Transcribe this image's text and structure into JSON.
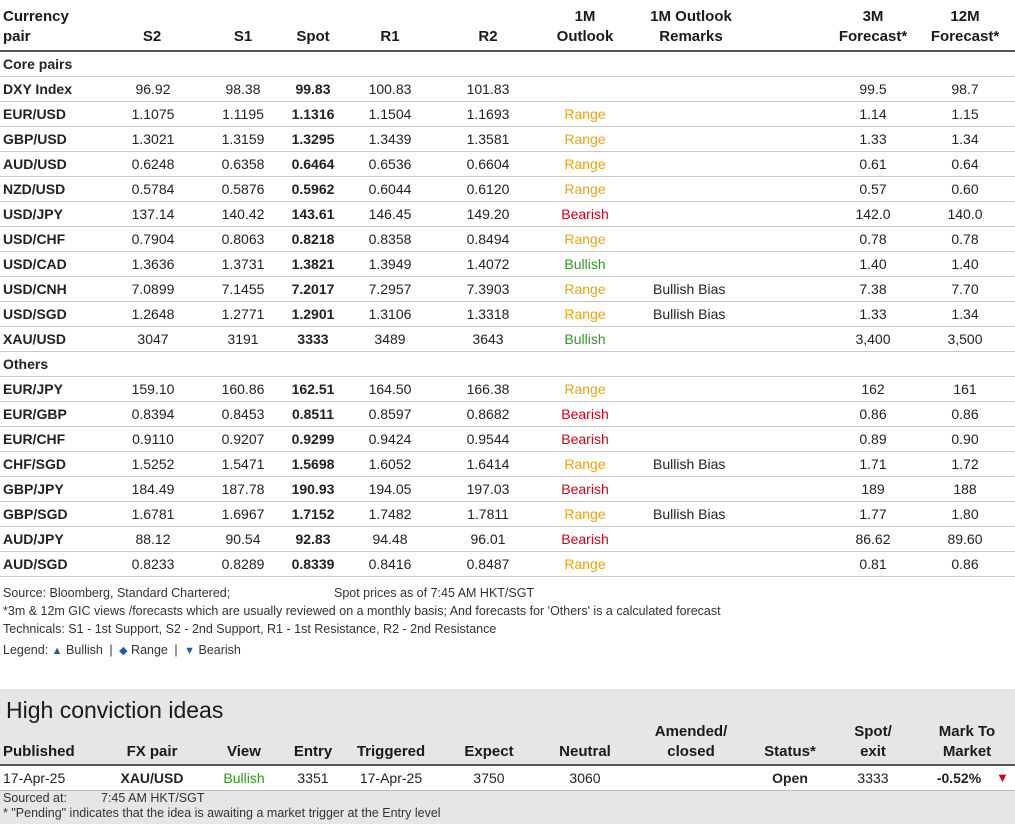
{
  "headers": {
    "pair": "Currency\npair",
    "s2": "S2",
    "s1": "S1",
    "spot": "Spot",
    "r1": "R1",
    "r2": "R2",
    "outlook_1m": "1M\nOutlook",
    "remarks_1m": "1M Outlook\nRemarks",
    "forecast_3m": "3M\nForecast*",
    "forecast_12m": "12M\nForecast*"
  },
  "sections": [
    {
      "title": "Core pairs",
      "rows": [
        {
          "pair": "DXY Index",
          "s2": "96.92",
          "s1": "98.38",
          "spot": "99.83",
          "r1": "100.83",
          "r2": "101.83",
          "outlook": "",
          "outlook_type": "",
          "remarks": "",
          "f3m": "99.5",
          "f12m": "98.7"
        },
        {
          "pair": "EUR/USD",
          "s2": "1.1075",
          "s1": "1.1195",
          "spot": "1.1316",
          "r1": "1.1504",
          "r2": "1.1693",
          "outlook": "Range",
          "outlook_type": "range",
          "remarks": "",
          "f3m": "1.14",
          "f12m": "1.15"
        },
        {
          "pair": "GBP/USD",
          "s2": "1.3021",
          "s1": "1.3159",
          "spot": "1.3295",
          "r1": "1.3439",
          "r2": "1.3581",
          "outlook": "Range",
          "outlook_type": "range",
          "remarks": "",
          "f3m": "1.33",
          "f12m": "1.34"
        },
        {
          "pair": "AUD/USD",
          "s2": "0.6248",
          "s1": "0.6358",
          "spot": "0.6464",
          "r1": "0.6536",
          "r2": "0.6604",
          "outlook": "Range",
          "outlook_type": "range",
          "remarks": "",
          "f3m": "0.61",
          "f12m": "0.64"
        },
        {
          "pair": "NZD/USD",
          "s2": "0.5784",
          "s1": "0.5876",
          "spot": "0.5962",
          "r1": "0.6044",
          "r2": "0.6120",
          "outlook": "Range",
          "outlook_type": "range",
          "remarks": "",
          "f3m": "0.57",
          "f12m": "0.60"
        },
        {
          "pair": "USD/JPY",
          "s2": "137.14",
          "s1": "140.42",
          "spot": "143.61",
          "r1": "146.45",
          "r2": "149.20",
          "outlook": "Bearish",
          "outlook_type": "bearish",
          "remarks": "",
          "f3m": "142.0",
          "f12m": "140.0"
        },
        {
          "pair": "USD/CHF",
          "s2": "0.7904",
          "s1": "0.8063",
          "spot": "0.8218",
          "r1": "0.8358",
          "r2": "0.8494",
          "outlook": "Range",
          "outlook_type": "range",
          "remarks": "",
          "f3m": "0.78",
          "f12m": "0.78"
        },
        {
          "pair": "USD/CAD",
          "s2": "1.3636",
          "s1": "1.3731",
          "spot": "1.3821",
          "r1": "1.3949",
          "r2": "1.4072",
          "outlook": "Bullish",
          "outlook_type": "bullish",
          "remarks": "",
          "f3m": "1.40",
          "f12m": "1.40"
        },
        {
          "pair": "USD/CNH",
          "s2": "7.0899",
          "s1": "7.1455",
          "spot": "7.2017",
          "r1": "7.2957",
          "r2": "7.3903",
          "outlook": "Range",
          "outlook_type": "range",
          "remarks": "Bullish Bias",
          "f3m": "7.38",
          "f12m": "7.70"
        },
        {
          "pair": "USD/SGD",
          "s2": "1.2648",
          "s1": "1.2771",
          "spot": "1.2901",
          "r1": "1.3106",
          "r2": "1.3318",
          "outlook": "Range",
          "outlook_type": "range",
          "remarks": "Bullish Bias",
          "f3m": "1.33",
          "f12m": "1.34"
        },
        {
          "pair": "XAU/USD",
          "s2": "3047",
          "s1": "3191",
          "spot": "3333",
          "r1": "3489",
          "r2": "3643",
          "outlook": "Bullish",
          "outlook_type": "bullish",
          "remarks": "",
          "f3m": "3,400",
          "f12m": "3,500"
        }
      ]
    },
    {
      "title": "Others",
      "rows": [
        {
          "pair": "EUR/JPY",
          "s2": "159.10",
          "s1": "160.86",
          "spot": "162.51",
          "r1": "164.50",
          "r2": "166.38",
          "outlook": "Range",
          "outlook_type": "range",
          "remarks": "",
          "f3m": "162",
          "f12m": "161"
        },
        {
          "pair": "EUR/GBP",
          "s2": "0.8394",
          "s1": "0.8453",
          "spot": "0.8511",
          "r1": "0.8597",
          "r2": "0.8682",
          "outlook": "Bearish",
          "outlook_type": "bearish",
          "remarks": "",
          "f3m": "0.86",
          "f12m": "0.86"
        },
        {
          "pair": "EUR/CHF",
          "s2": "0.9110",
          "s1": "0.9207",
          "spot": "0.9299",
          "r1": "0.9424",
          "r2": "0.9544",
          "outlook": "Bearish",
          "outlook_type": "bearish",
          "remarks": "",
          "f3m": "0.89",
          "f12m": "0.90"
        },
        {
          "pair": "CHF/SGD",
          "s2": "1.5252",
          "s1": "1.5471",
          "spot": "1.5698",
          "r1": "1.6052",
          "r2": "1.6414",
          "outlook": "Range",
          "outlook_type": "range",
          "remarks": "Bullish Bias",
          "f3m": "1.71",
          "f12m": "1.72"
        },
        {
          "pair": "GBP/JPY",
          "s2": "184.49",
          "s1": "187.78",
          "spot": "190.93",
          "r1": "194.05",
          "r2": "197.03",
          "outlook": "Bearish",
          "outlook_type": "bearish",
          "remarks": "",
          "f3m": "189",
          "f12m": "188"
        },
        {
          "pair": "GBP/SGD",
          "s2": "1.6781",
          "s1": "1.6967",
          "spot": "1.7152",
          "r1": "1.7482",
          "r2": "1.7811",
          "outlook": "Range",
          "outlook_type": "range",
          "remarks": "Bullish Bias",
          "f3m": "1.77",
          "f12m": "1.80"
        },
        {
          "pair": "AUD/JPY",
          "s2": "88.12",
          "s1": "90.54",
          "spot": "92.83",
          "r1": "94.48",
          "r2": "96.01",
          "outlook": "Bearish",
          "outlook_type": "bearish",
          "remarks": "",
          "f3m": "86.62",
          "f12m": "89.60"
        },
        {
          "pair": "AUD/SGD",
          "s2": "0.8233",
          "s1": "0.8289",
          "spot": "0.8339",
          "r1": "0.8416",
          "r2": "0.8487",
          "outlook": "Range",
          "outlook_type": "range",
          "remarks": "",
          "f3m": "0.81",
          "f12m": "0.86"
        }
      ]
    }
  ],
  "notes": {
    "source": "Source: Bloomberg, Standard Chartered;",
    "spot_time": "Spot prices as of 7:45 AM HKT/SGT",
    "forecast_note": "*3m & 12m GIC views /forecasts which are usually reviewed on a monthly basis; And forecasts for 'Others' is a calculated forecast",
    "technicals": "Technicals: S1 - 1st Support, S2 - 2nd Support, R1 - 1st Resistance, R2 - 2nd Resistance",
    "legend_prefix": "Legend:",
    "legend_bullish": "Bullish",
    "legend_range": "Range",
    "legend_bearish": "Bearish",
    "separator": "|"
  },
  "high_conviction": {
    "title": "High conviction ideas",
    "headers": {
      "published": "Published",
      "fx_pair": "FX pair",
      "view": "View",
      "entry": "Entry",
      "triggered": "Triggered",
      "expect": "Expect",
      "neutral": "Neutral",
      "amended": "Amended/\nclosed",
      "status": "Status*",
      "spot_exit": "Spot/\nexit",
      "mark_to_market": "Mark To\nMarket"
    },
    "row": {
      "published": "17-Apr-25",
      "fx_pair": "XAU/USD",
      "view": "Bullish",
      "entry": "3351",
      "triggered": "17-Apr-25",
      "expect": "3750",
      "neutral": "3060",
      "amended": "",
      "status": "Open",
      "spot_exit": "3333",
      "mtm": "-0.52%"
    },
    "sourced_label": "Sourced at:",
    "sourced_time": "7:45 AM HKT/SGT",
    "pending_note": "* \"Pending\" indicates that the idea is awaiting a market trigger at the Entry level"
  },
  "colors": {
    "range": "#e8a21a",
    "bearish": "#d0021b",
    "bullish": "#2e9a1e",
    "legend_marker": "#1f5fa8"
  }
}
